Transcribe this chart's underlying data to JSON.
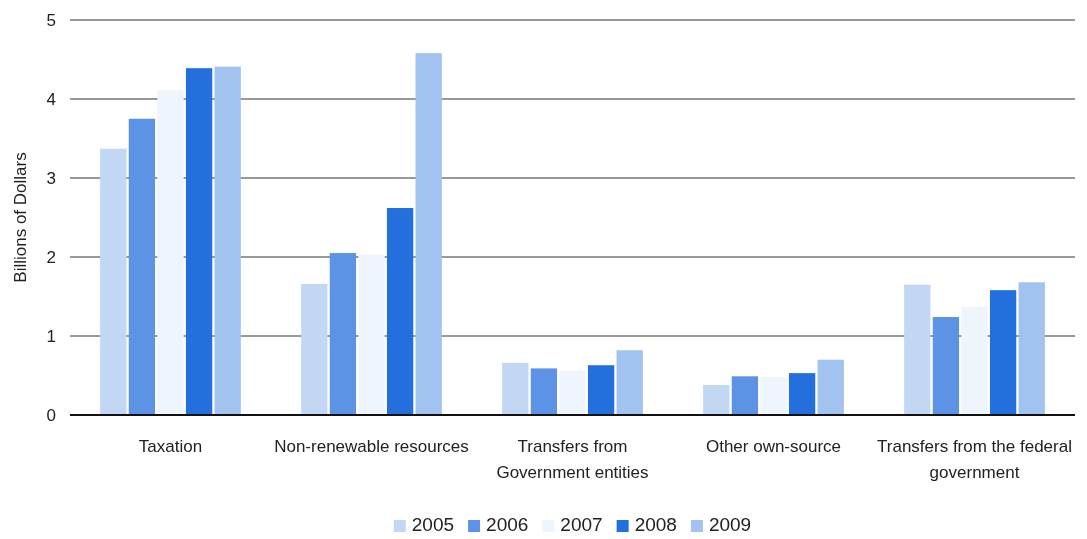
{
  "chart_data": {
    "type": "bar",
    "ylabel": "Billions of Dollars",
    "categories": [
      "Taxation",
      "Non-renewable resources",
      "Transfers from Government entities",
      "Other own-source",
      "Transfers from the federal government"
    ],
    "series": [
      {
        "name": "2005",
        "color": "#c2d7f4",
        "values": [
          3.37,
          1.66,
          0.66,
          0.38,
          1.65
        ]
      },
      {
        "name": "2006",
        "color": "#5c93e4",
        "values": [
          3.75,
          2.05,
          0.59,
          0.49,
          1.24
        ]
      },
      {
        "name": "2007",
        "color": "#eef5fd",
        "values": [
          4.11,
          2.03,
          0.56,
          0.48,
          1.37
        ]
      },
      {
        "name": "2008",
        "color": "#226fdd",
        "values": [
          4.39,
          2.62,
          0.63,
          0.53,
          1.58
        ]
      },
      {
        "name": "2009",
        "color": "#a2c2f0",
        "values": [
          4.41,
          4.58,
          0.82,
          0.7,
          1.68
        ]
      }
    ],
    "ylim": [
      0,
      5
    ],
    "yticks": [
      0,
      1,
      2,
      3,
      4,
      5
    ],
    "grid": "y",
    "legend": "bottom"
  }
}
